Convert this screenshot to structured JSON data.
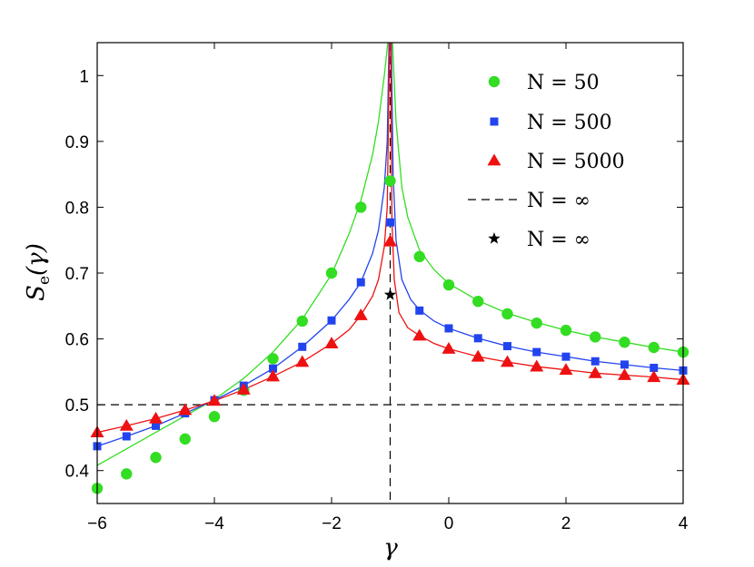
{
  "chart_data": {
    "type": "scatter",
    "title": "",
    "xlabel": "γ",
    "ylabel": {
      "main": "S",
      "sub": "e",
      "arg": "(γ)"
    },
    "xlim": [
      -6,
      4
    ],
    "ylim": [
      0.35,
      1.05
    ],
    "x_ticks": [
      -6,
      -4,
      -2,
      0,
      2,
      4
    ],
    "y_ticks": [
      0.4,
      0.5,
      0.6,
      0.7,
      0.8,
      0.9,
      1
    ],
    "x_tick_labels": [
      "−6",
      "−4",
      "−2",
      "0",
      "2",
      "4"
    ],
    "y_tick_labels": [
      "0.4",
      "0.5",
      "0.6",
      "0.7",
      "0.8",
      "0.9",
      "1"
    ],
    "grid": false,
    "legend_position": "top-right",
    "reference_lines": {
      "horizontal_y": 0.5,
      "vertical_x": -1,
      "color": "#000000",
      "style": "dashed"
    },
    "series": [
      {
        "name": "N = 50",
        "marker": "circle",
        "color": "#33dd22",
        "points": [
          [
            -6.0,
            0.373
          ],
          [
            -5.5,
            0.395
          ],
          [
            -5.0,
            0.42
          ],
          [
            -4.5,
            0.448
          ],
          [
            -4.0,
            0.482
          ],
          [
            -3.5,
            0.522
          ],
          [
            -3.0,
            0.57
          ],
          [
            -2.5,
            0.627
          ],
          [
            -2.0,
            0.7
          ],
          [
            -1.5,
            0.8
          ],
          [
            -1.0,
            0.84
          ],
          [
            -0.5,
            0.725
          ],
          [
            0.0,
            0.682
          ],
          [
            0.5,
            0.657
          ],
          [
            1.0,
            0.638
          ],
          [
            1.5,
            0.624
          ],
          [
            2.0,
            0.613
          ],
          [
            2.5,
            0.603
          ],
          [
            3.0,
            0.595
          ],
          [
            3.5,
            0.587
          ],
          [
            4.0,
            0.58
          ]
        ],
        "curve": [
          [
            -6.0,
            0.408
          ],
          [
            -5.5,
            0.433
          ],
          [
            -5.0,
            0.458
          ],
          [
            -4.5,
            0.483
          ],
          [
            -4.0,
            0.508
          ],
          [
            -3.5,
            0.54
          ],
          [
            -3.0,
            0.58
          ],
          [
            -2.5,
            0.63
          ],
          [
            -2.0,
            0.698
          ],
          [
            -1.7,
            0.76
          ],
          [
            -1.5,
            0.81
          ],
          [
            -1.3,
            0.88
          ],
          [
            -1.2,
            0.93
          ],
          [
            -1.1,
            1.0
          ],
          [
            -1.04,
            1.05
          ],
          [
            -0.96,
            1.05
          ],
          [
            -0.9,
            0.93
          ],
          [
            -0.8,
            0.83
          ],
          [
            -0.7,
            0.785
          ],
          [
            -0.5,
            0.735
          ],
          [
            -0.25,
            0.705
          ],
          [
            0.0,
            0.684
          ],
          [
            0.5,
            0.658
          ],
          [
            1.0,
            0.639
          ],
          [
            1.5,
            0.625
          ],
          [
            2.0,
            0.613
          ],
          [
            2.5,
            0.603
          ],
          [
            3.0,
            0.595
          ],
          [
            3.5,
            0.587
          ],
          [
            4.0,
            0.58
          ]
        ]
      },
      {
        "name": "N = 500",
        "marker": "square",
        "color": "#2244ee",
        "points": [
          [
            -6.0,
            0.437
          ],
          [
            -5.5,
            0.452
          ],
          [
            -5.0,
            0.468
          ],
          [
            -4.5,
            0.487
          ],
          [
            -4.0,
            0.507
          ],
          [
            -3.5,
            0.529
          ],
          [
            -3.0,
            0.555
          ],
          [
            -2.5,
            0.588
          ],
          [
            -2.0,
            0.628
          ],
          [
            -1.5,
            0.686
          ],
          [
            -1.0,
            0.777
          ],
          [
            -0.5,
            0.643
          ],
          [
            0.0,
            0.616
          ],
          [
            0.5,
            0.601
          ],
          [
            1.0,
            0.589
          ],
          [
            1.5,
            0.58
          ],
          [
            2.0,
            0.573
          ],
          [
            2.5,
            0.566
          ],
          [
            3.0,
            0.561
          ],
          [
            3.5,
            0.556
          ],
          [
            4.0,
            0.552
          ]
        ],
        "curve": [
          [
            -6.0,
            0.437
          ],
          [
            -5.5,
            0.452
          ],
          [
            -5.0,
            0.468
          ],
          [
            -4.5,
            0.487
          ],
          [
            -4.0,
            0.507
          ],
          [
            -3.5,
            0.529
          ],
          [
            -3.0,
            0.555
          ],
          [
            -2.5,
            0.588
          ],
          [
            -2.0,
            0.628
          ],
          [
            -1.7,
            0.66
          ],
          [
            -1.5,
            0.686
          ],
          [
            -1.3,
            0.73
          ],
          [
            -1.2,
            0.765
          ],
          [
            -1.1,
            0.83
          ],
          [
            -1.05,
            0.9
          ],
          [
            -1.02,
            1.05
          ],
          [
            -0.98,
            1.05
          ],
          [
            -0.95,
            0.85
          ],
          [
            -0.9,
            0.75
          ],
          [
            -0.8,
            0.69
          ],
          [
            -0.65,
            0.66
          ],
          [
            -0.5,
            0.644
          ],
          [
            -0.25,
            0.627
          ],
          [
            0.0,
            0.616
          ],
          [
            0.5,
            0.601
          ],
          [
            1.0,
            0.589
          ],
          [
            1.5,
            0.58
          ],
          [
            2.0,
            0.573
          ],
          [
            2.5,
            0.566
          ],
          [
            3.0,
            0.561
          ],
          [
            3.5,
            0.556
          ],
          [
            4.0,
            0.552
          ]
        ]
      },
      {
        "name": "N = 5000",
        "marker": "triangle",
        "color": "#ee1111",
        "points": [
          [
            -6.0,
            0.458
          ],
          [
            -5.5,
            0.468
          ],
          [
            -5.0,
            0.479
          ],
          [
            -4.5,
            0.492
          ],
          [
            -4.0,
            0.506
          ],
          [
            -3.5,
            0.523
          ],
          [
            -3.0,
            0.543
          ],
          [
            -2.5,
            0.565
          ],
          [
            -2.0,
            0.593
          ],
          [
            -1.5,
            0.636
          ],
          [
            -1.0,
            0.748
          ],
          [
            -0.5,
            0.605
          ],
          [
            0.0,
            0.585
          ],
          [
            0.5,
            0.573
          ],
          [
            1.0,
            0.565
          ],
          [
            1.5,
            0.558
          ],
          [
            2.0,
            0.553
          ],
          [
            2.5,
            0.548
          ],
          [
            3.0,
            0.545
          ],
          [
            3.5,
            0.542
          ],
          [
            4.0,
            0.538
          ]
        ],
        "curve": [
          [
            -6.0,
            0.458
          ],
          [
            -5.5,
            0.468
          ],
          [
            -5.0,
            0.479
          ],
          [
            -4.5,
            0.492
          ],
          [
            -4.0,
            0.506
          ],
          [
            -3.5,
            0.523
          ],
          [
            -3.0,
            0.543
          ],
          [
            -2.5,
            0.565
          ],
          [
            -2.0,
            0.593
          ],
          [
            -1.7,
            0.614
          ],
          [
            -1.5,
            0.636
          ],
          [
            -1.3,
            0.665
          ],
          [
            -1.2,
            0.69
          ],
          [
            -1.1,
            0.74
          ],
          [
            -1.05,
            0.8
          ],
          [
            -1.01,
            1.05
          ],
          [
            -0.99,
            1.05
          ],
          [
            -0.97,
            0.78
          ],
          [
            -0.93,
            0.69
          ],
          [
            -0.85,
            0.64
          ],
          [
            -0.7,
            0.617
          ],
          [
            -0.5,
            0.605
          ],
          [
            -0.25,
            0.593
          ],
          [
            0.0,
            0.585
          ],
          [
            0.5,
            0.573
          ],
          [
            1.0,
            0.565
          ],
          [
            1.5,
            0.558
          ],
          [
            2.0,
            0.553
          ],
          [
            2.5,
            0.548
          ],
          [
            3.0,
            0.545
          ],
          [
            3.5,
            0.542
          ],
          [
            4.0,
            0.538
          ]
        ]
      },
      {
        "name": "N = ∞",
        "marker": "dashed-line",
        "color": "#000000"
      },
      {
        "name": "N = ∞",
        "marker": "star",
        "color": "#000000",
        "points": [
          [
            -1.0,
            0.667
          ]
        ]
      }
    ]
  }
}
